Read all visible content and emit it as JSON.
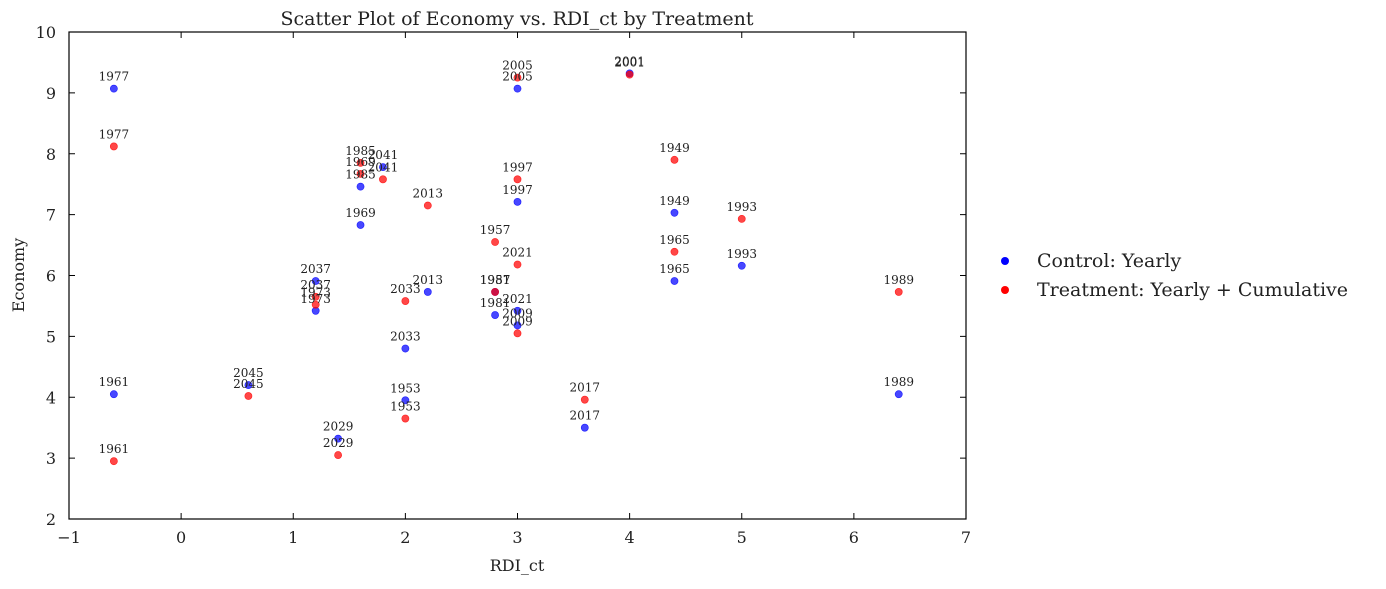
{
  "chart_data": {
    "type": "scatter",
    "title": "Scatter Plot of Economy vs. RDI_ct by Treatment",
    "xlabel": "RDI_ct",
    "ylabel": "Economy",
    "xlim": [
      -1,
      7
    ],
    "ylim": [
      2,
      10
    ],
    "x_ticks": [
      "−1",
      "0",
      "1",
      "2",
      "3",
      "4",
      "5",
      "6",
      "7"
    ],
    "y_ticks": [
      "2",
      "3",
      "4",
      "5",
      "6",
      "7",
      "8",
      "9",
      "10"
    ],
    "grid": false,
    "legend_position": "right",
    "series": [
      {
        "name": "Control: Yearly",
        "color": "#0000ff",
        "points": [
          {
            "x": -0.6,
            "y": 9.07,
            "label": "1977"
          },
          {
            "x": -0.6,
            "y": 4.05,
            "label": "1961"
          },
          {
            "x": 0.6,
            "y": 4.2,
            "label": "2045"
          },
          {
            "x": 1.2,
            "y": 5.91,
            "label": "2037"
          },
          {
            "x": 1.2,
            "y": 5.42,
            "label": "1973"
          },
          {
            "x": 1.4,
            "y": 3.32,
            "label": "2029"
          },
          {
            "x": 1.6,
            "y": 7.46,
            "label": "1985"
          },
          {
            "x": 1.6,
            "y": 6.83,
            "label": "1969"
          },
          {
            "x": 1.8,
            "y": 7.78,
            "label": "2041"
          },
          {
            "x": 2.0,
            "y": 4.8,
            "label": "2033"
          },
          {
            "x": 2.0,
            "y": 3.95,
            "label": "1953"
          },
          {
            "x": 2.2,
            "y": 5.73,
            "label": "2013"
          },
          {
            "x": 2.8,
            "y": 5.73,
            "label": "1957"
          },
          {
            "x": 2.8,
            "y": 5.35,
            "label": "1981"
          },
          {
            "x": 3.0,
            "y": 9.07,
            "label": "2005"
          },
          {
            "x": 3.0,
            "y": 7.21,
            "label": "1997"
          },
          {
            "x": 3.0,
            "y": 5.42,
            "label": "2021"
          },
          {
            "x": 3.0,
            "y": 5.18,
            "label": "2009"
          },
          {
            "x": 3.6,
            "y": 3.5,
            "label": "2017"
          },
          {
            "x": 4.0,
            "y": 9.32,
            "label": "2001"
          },
          {
            "x": 4.4,
            "y": 7.03,
            "label": "1949"
          },
          {
            "x": 4.4,
            "y": 5.91,
            "label": "1965"
          },
          {
            "x": 5.0,
            "y": 6.16,
            "label": "1993"
          },
          {
            "x": 6.4,
            "y": 4.05,
            "label": "1989"
          }
        ]
      },
      {
        "name": "Treatment: Yearly + Cumulative",
        "color": "#ff0000",
        "points": [
          {
            "x": -0.6,
            "y": 8.12,
            "label": "1977"
          },
          {
            "x": -0.6,
            "y": 2.95,
            "label": "1961"
          },
          {
            "x": 0.6,
            "y": 4.02,
            "label": "2045"
          },
          {
            "x": 1.2,
            "y": 5.65,
            "label": "2037"
          },
          {
            "x": 1.2,
            "y": 5.52,
            "label": "1973"
          },
          {
            "x": 1.4,
            "y": 3.05,
            "label": "2029"
          },
          {
            "x": 1.6,
            "y": 7.85,
            "label": "1985"
          },
          {
            "x": 1.6,
            "y": 7.67,
            "label": "1969"
          },
          {
            "x": 1.8,
            "y": 7.58,
            "label": "2041"
          },
          {
            "x": 2.0,
            "y": 5.58,
            "label": "2033"
          },
          {
            "x": 2.0,
            "y": 3.65,
            "label": "1953"
          },
          {
            "x": 2.2,
            "y": 7.15,
            "label": "2013"
          },
          {
            "x": 2.8,
            "y": 6.55,
            "label": "1957"
          },
          {
            "x": 2.8,
            "y": 5.73,
            "label": "1981"
          },
          {
            "x": 3.0,
            "y": 9.25,
            "label": "2005"
          },
          {
            "x": 3.0,
            "y": 7.58,
            "label": "1997"
          },
          {
            "x": 3.0,
            "y": 6.18,
            "label": "2021"
          },
          {
            "x": 3.0,
            "y": 5.05,
            "label": "2009"
          },
          {
            "x": 3.6,
            "y": 3.96,
            "label": "2017"
          },
          {
            "x": 4.0,
            "y": 9.3,
            "label": "2001"
          },
          {
            "x": 4.4,
            "y": 7.9,
            "label": "1949"
          },
          {
            "x": 4.4,
            "y": 6.39,
            "label": "1965"
          },
          {
            "x": 5.0,
            "y": 6.93,
            "label": "1993"
          },
          {
            "x": 6.4,
            "y": 5.73,
            "label": "1989"
          }
        ]
      }
    ]
  }
}
